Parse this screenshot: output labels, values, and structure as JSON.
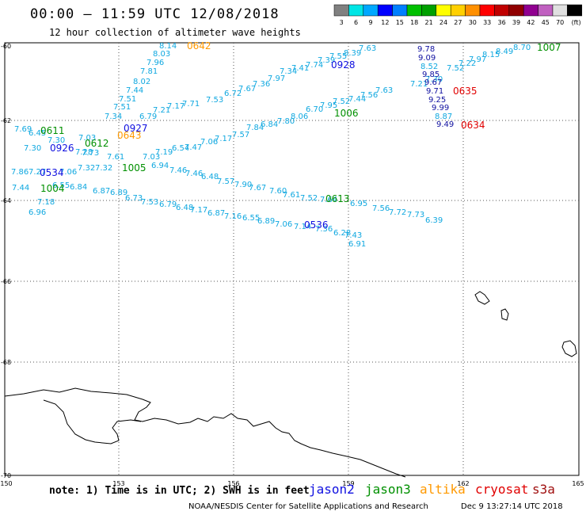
{
  "header": {
    "title": "00:00 – 11:59 UTC 12/08/2018",
    "subtitle": "12 hour collection of altimeter wave heights"
  },
  "legend": {
    "colors": [
      "#808080",
      "#00e5e5",
      "#00a8ff",
      "#0000ff",
      "#007fff",
      "#00c000",
      "#00a000",
      "#ffff00",
      "#ffd000",
      "#ff9000",
      "#ff0000",
      "#c00000",
      "#900000",
      "#900090",
      "#c060c0",
      "#e0e0e0",
      "#000000"
    ],
    "labels": [
      "3",
      "6",
      "9",
      "12",
      "15",
      "18",
      "21",
      "24",
      "27",
      "30",
      "33",
      "36",
      "39",
      "42",
      "45",
      "70",
      "(ft)"
    ]
  },
  "axes": {
    "x_ticks": [
      "150",
      "153",
      "156",
      "159",
      "162",
      "165"
    ],
    "y_ticks": [
      "-60",
      "-62",
      "-64",
      "-66",
      "-68",
      "-70"
    ]
  },
  "footer": {
    "note": "note:  1) Time is in UTC;  2) SWH is in feet",
    "satellites": [
      {
        "name": "jason2",
        "color": "#1010e0"
      },
      {
        "name": "jason3",
        "color": "#009000"
      },
      {
        "name": "altika",
        "color": "#ff9900"
      },
      {
        "name": "cryosat",
        "color": "#e00000"
      },
      {
        "name": "s3a",
        "color": "#a01010"
      }
    ],
    "credit": "NOAA/NESDIS Center for Satellite Applications and Research",
    "timestamp": "Dec  9 13:27:14 UTC 2018"
  },
  "map": {
    "time_labels": [
      {
        "text": "0642",
        "sat": "altika"
      },
      {
        "text": "0928",
        "sat": "jason2"
      },
      {
        "text": "1007",
        "sat": "jason3"
      },
      {
        "text": "0635",
        "sat": "cryosat"
      },
      {
        "text": "1006",
        "sat": "jason3"
      },
      {
        "text": "0634",
        "sat": "cryosat"
      },
      {
        "text": "0611",
        "sat": "jason3"
      },
      {
        "text": "0927",
        "sat": "jason2"
      },
      {
        "text": "0643",
        "sat": "altika"
      },
      {
        "text": "0612",
        "sat": "jason3"
      },
      {
        "text": "0926",
        "sat": "jason2"
      },
      {
        "text": "1005",
        "sat": "jason3"
      },
      {
        "text": "0534",
        "sat": "jason2"
      },
      {
        "text": "1004",
        "sat": "jason3"
      },
      {
        "text": "0613",
        "sat": "jason3"
      },
      {
        "text": "0536",
        "sat": "jason2"
      }
    ],
    "swh_values": [
      {
        "v": "8.14",
        "c": "#10a8e0"
      },
      {
        "v": "8.03",
        "c": "#10a8e0"
      },
      {
        "v": "7.96",
        "c": "#10a8e0"
      },
      {
        "v": "7.81",
        "c": "#10a8e0"
      },
      {
        "v": "8.02",
        "c": "#10a8e0"
      },
      {
        "v": "7.44",
        "c": "#10a8e0"
      },
      {
        "v": "7.51",
        "c": "#10a8e0"
      },
      {
        "v": "7.51",
        "c": "#10a8e0"
      },
      {
        "v": "7.34",
        "c": "#10a8e0"
      },
      {
        "v": "7.63",
        "c": "#10a8e0"
      },
      {
        "v": "8.39",
        "c": "#10a8e0"
      },
      {
        "v": "7.55",
        "c": "#10a8e0"
      },
      {
        "v": "7.39",
        "c": "#10a8e0"
      },
      {
        "v": "7.74",
        "c": "#10a8e0"
      },
      {
        "v": "7.41",
        "c": "#10a8e0"
      },
      {
        "v": "7.34",
        "c": "#10a8e0"
      },
      {
        "v": "7.97",
        "c": "#10a8e0"
      },
      {
        "v": "7.36",
        "c": "#10a8e0"
      },
      {
        "v": "7.67",
        "c": "#10a8e0"
      },
      {
        "v": "6.72",
        "c": "#10a8e0"
      },
      {
        "v": "7.53",
        "c": "#10a8e0"
      },
      {
        "v": "7.71",
        "c": "#10a8e0"
      },
      {
        "v": "7.17",
        "c": "#10a8e0"
      },
      {
        "v": "7.21",
        "c": "#10a8e0"
      },
      {
        "v": "6.79",
        "c": "#10a8e0"
      },
      {
        "v": "8.70",
        "c": "#10a8e0"
      },
      {
        "v": "8.49",
        "c": "#10a8e0"
      },
      {
        "v": "8.15",
        "c": "#10a8e0"
      },
      {
        "v": "7.97",
        "c": "#10a8e0"
      },
      {
        "v": "7.22",
        "c": "#10a8e0"
      },
      {
        "v": "7.52",
        "c": "#10a8e0"
      },
      {
        "v": "7.30",
        "c": "#10a8e0"
      },
      {
        "v": "7.21",
        "c": "#10a8e0"
      },
      {
        "v": "7.63",
        "c": "#10a8e0"
      },
      {
        "v": "7.56",
        "c": "#10a8e0"
      },
      {
        "v": "7.44",
        "c": "#10a8e0"
      },
      {
        "v": "7.52",
        "c": "#10a8e0"
      },
      {
        "v": "7.95",
        "c": "#10a8e0"
      },
      {
        "v": "6.70",
        "c": "#10a8e0"
      },
      {
        "v": "8.06",
        "c": "#10a8e0"
      },
      {
        "v": "7.80",
        "c": "#10a8e0"
      },
      {
        "v": "6.84",
        "c": "#10a8e0"
      },
      {
        "v": "7.84",
        "c": "#10a8e0"
      },
      {
        "v": "7.57",
        "c": "#10a8e0"
      },
      {
        "v": "7.17",
        "c": "#10a8e0"
      },
      {
        "v": "7.06",
        "c": "#10a8e0"
      },
      {
        "v": "7.47",
        "c": "#10a8e0"
      },
      {
        "v": "6.54",
        "c": "#10a8e0"
      },
      {
        "v": "7.19",
        "c": "#10a8e0"
      },
      {
        "v": "9.78",
        "c": "#1010a0"
      },
      {
        "v": "9.09",
        "c": "#1010a0"
      },
      {
        "v": "8.52",
        "c": "#10a8e0"
      },
      {
        "v": "9.85",
        "c": "#1010a0"
      },
      {
        "v": "9.67",
        "c": "#1010a0"
      },
      {
        "v": "9.71",
        "c": "#1010a0"
      },
      {
        "v": "9.25",
        "c": "#1010a0"
      },
      {
        "v": "9.99",
        "c": "#1010a0"
      },
      {
        "v": "8.87",
        "c": "#10a8e0"
      },
      {
        "v": "9.49",
        "c": "#1010a0"
      },
      {
        "v": "7.69",
        "c": "#10a8e0"
      },
      {
        "v": "6.45",
        "c": "#10a8e0"
      },
      {
        "v": "7.30",
        "c": "#10a8e0"
      },
      {
        "v": "7.03",
        "c": "#10a8e0"
      },
      {
        "v": "7.30",
        "c": "#10a8e0"
      },
      {
        "v": "7.28",
        "c": "#10a8e0"
      },
      {
        "v": "7.73",
        "c": "#10a8e0"
      },
      {
        "v": "7.61",
        "c": "#10a8e0"
      },
      {
        "v": "7.03",
        "c": "#10a8e0"
      },
      {
        "v": "6.94",
        "c": "#10a8e0"
      },
      {
        "v": "7.46",
        "c": "#10a8e0"
      },
      {
        "v": "7.46",
        "c": "#10a8e0"
      },
      {
        "v": "6.48",
        "c": "#10a8e0"
      },
      {
        "v": "7.57",
        "c": "#10a8e0"
      },
      {
        "v": "7.90",
        "c": "#10a8e0"
      },
      {
        "v": "7.67",
        "c": "#10a8e0"
      },
      {
        "v": "7.60",
        "c": "#10a8e0"
      },
      {
        "v": "7.61",
        "c": "#10a8e0"
      },
      {
        "v": "7.52",
        "c": "#10a8e0"
      },
      {
        "v": "7.64",
        "c": "#10a8e0"
      },
      {
        "v": "6.95",
        "c": "#10a8e0"
      },
      {
        "v": "7.56",
        "c": "#10a8e0"
      },
      {
        "v": "7.72",
        "c": "#10a8e0"
      },
      {
        "v": "7.73",
        "c": "#10a8e0"
      },
      {
        "v": "6.39",
        "c": "#10a8e0"
      },
      {
        "v": "7.32",
        "c": "#10a8e0"
      },
      {
        "v": "7.32",
        "c": "#10a8e0"
      },
      {
        "v": "7.06",
        "c": "#10a8e0"
      },
      {
        "v": "7.86",
        "c": "#10a8e0"
      },
      {
        "v": "7.44",
        "c": "#10a8e0"
      },
      {
        "v": "7.27",
        "c": "#10a8e0"
      },
      {
        "v": "6.55",
        "c": "#10a8e0"
      },
      {
        "v": "6.84",
        "c": "#10a8e0"
      },
      {
        "v": "6.87",
        "c": "#10a8e0"
      },
      {
        "v": "6.89",
        "c": "#10a8e0"
      },
      {
        "v": "6.73",
        "c": "#10a8e0"
      },
      {
        "v": "7.53",
        "c": "#10a8e0"
      },
      {
        "v": "6.79",
        "c": "#10a8e0"
      },
      {
        "v": "6.48",
        "c": "#10a8e0"
      },
      {
        "v": "7.17",
        "c": "#10a8e0"
      },
      {
        "v": "6.87",
        "c": "#10a8e0"
      },
      {
        "v": "7.16",
        "c": "#10a8e0"
      },
      {
        "v": "6.55",
        "c": "#10a8e0"
      },
      {
        "v": "6.89",
        "c": "#10a8e0"
      },
      {
        "v": "7.06",
        "c": "#10a8e0"
      },
      {
        "v": "7.14",
        "c": "#10a8e0"
      },
      {
        "v": "7.36",
        "c": "#10a8e0"
      },
      {
        "v": "6.28",
        "c": "#10a8e0"
      },
      {
        "v": "7.43",
        "c": "#10a8e0"
      },
      {
        "v": "6.91",
        "c": "#10a8e0"
      },
      {
        "v": "7.18",
        "c": "#10a8e0"
      },
      {
        "v": "6.96",
        "c": "#10a8e0"
      }
    ]
  }
}
